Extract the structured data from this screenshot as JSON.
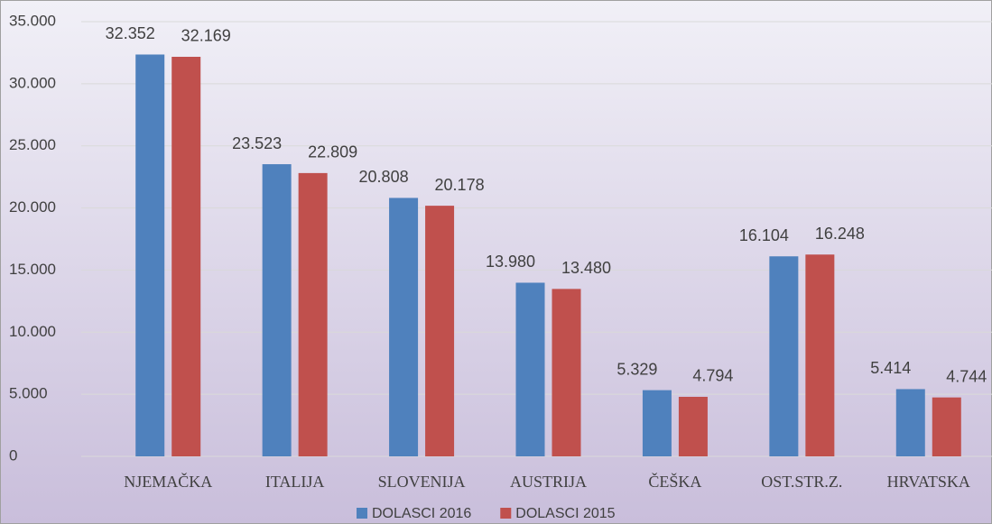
{
  "chart_data": {
    "type": "bar",
    "categories": [
      "NJEMAČKA",
      "ITALIJA",
      "SLOVENIJA",
      "AUSTRIJA",
      "ČEŠKA",
      "OST.STR.Z.",
      "HRVATSKA"
    ],
    "series": [
      {
        "name": "DOLASCI 2016",
        "color": "#4f81bd",
        "values": [
          32352,
          23523,
          20808,
          13980,
          5329,
          16104,
          5414
        ],
        "value_labels": [
          "32.352",
          "23.523",
          "20.808",
          "13.980",
          "5.329",
          "16.104",
          "5.414"
        ]
      },
      {
        "name": "DOLASCI 2015",
        "color": "#c0504d",
        "values": [
          32169,
          22809,
          20178,
          13480,
          4794,
          16248,
          4744
        ],
        "value_labels": [
          "32.169",
          "22.809",
          "20.178",
          "13.480",
          "4.794",
          "16.248",
          "4.744"
        ]
      }
    ],
    "ylim": [
      0,
      35000
    ],
    "yticks": [
      0,
      {
        "value": 5000,
        "label": "5.000"
      },
      {
        "value": 10000,
        "label": "10.000"
      },
      {
        "value": 15000,
        "label": "15.000"
      },
      {
        "value": 20000,
        "label": "20.000"
      },
      {
        "value": 25000,
        "label": "25.000"
      },
      {
        "value": 30000,
        "label": "30.000"
      },
      {
        "value": 35000,
        "label": "35.000"
      }
    ],
    "grid": true,
    "legend": "bottom"
  }
}
